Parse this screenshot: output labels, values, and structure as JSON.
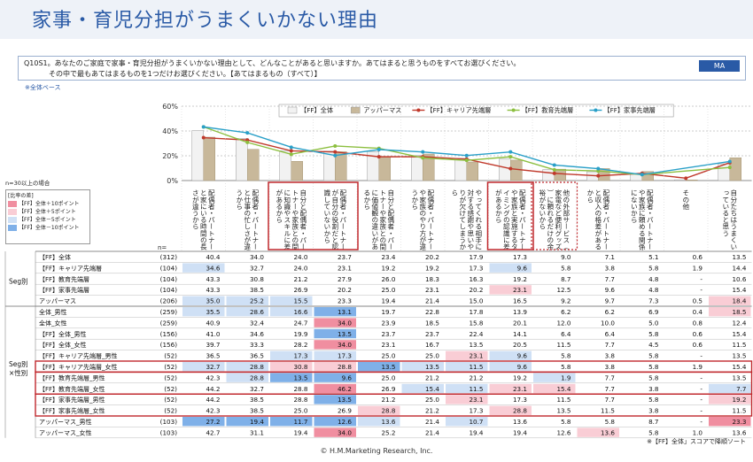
{
  "page": {
    "title": "家事・育児分担がうまくいかない理由",
    "question_line1": "Q10S1。あなたのご家庭で家事・育児分担がうまくいかない理由として、どんなことがあると思いますか。あてはまると思うものをすべてお選びください。",
    "question_line2": "その中で最もあてはまるものを1つだけお選びください。【あてはまるもの（すべて）】",
    "ma_label": "MA",
    "base_note": "※全体ベース",
    "n30_note": "n=30以上の場合",
    "legend_title": "[比率の差]",
    "legend_items": [
      "【FF】全体＋10ポイント",
      "【FF】全体＋5ポイント",
      "【FF】全体－5ポイント",
      "【FF】全体－10ポイント"
    ],
    "legend_colors": [
      "#f08ea0",
      "#f9cdd5",
      "#cfe0f5",
      "#7fb0e8"
    ],
    "n_label": "n=",
    "seg_label1": "Seg別",
    "seg_label2": "Seg別\n×性別",
    "footer": "© H.M.Marketing Research, Inc.",
    "sort_note": "※【FF】全体」スコアで降順ソート"
  },
  "chart_data": {
    "type": "bar",
    "ylim": [
      0,
      60
    ],
    "yticks": [
      "0%",
      "20%",
      "40%",
      "60%"
    ],
    "legend_position": "top-right",
    "categories": [
      "配偶者・パートナーと家にいる時間の長さが違うから",
      "配偶者・パートナーと仕事の忙しさが違うから",
      "自分と配偶者・パートナーや家族との間に知識やスキルに差があるから",
      "配偶者・パートナーが自分の役割だと認識していないから",
      "自分と配偶者・パートナーや家族との間に価値観の違いがあるから",
      "配偶者・パートナーや家族のやり方が違うから",
      "やってくれる相手に対する感謝や思いやりが欠けてしまうから",
      "配偶者・パートナーや家族と実施するタイミングの認識に差があるから",
      "他の外部サービス（家電など便利グッズ）に頼れるだけの余裕がないから",
      "配偶者・パートナーと収入の格差があるから",
      "配偶者・パートナーや家族に頼める関係にないから",
      "その他",
      "自分たちはうまくいっていると思う"
    ],
    "series": [
      {
        "name": "【FF】全体",
        "type": "bar",
        "color": "#f2f2f2",
        "values": [
          40.4,
          34.0,
          24.0,
          23.7,
          23.4,
          20.2,
          17.9,
          17.3,
          9.0,
          7.1,
          5.1,
          0.6,
          13.5
        ]
      },
      {
        "name": "アッパーマス",
        "type": "bar",
        "color": "#c8b89a",
        "values": [
          35.0,
          25.2,
          15.5,
          23.3,
          19.4,
          21.4,
          15.0,
          16.5,
          9.2,
          9.7,
          7.3,
          0.5,
          18.4
        ]
      },
      {
        "name": "【FF】キャリア先端層",
        "type": "line",
        "color": "#c0392b",
        "values": [
          34.6,
          32.7,
          24.0,
          23.1,
          19.2,
          19.2,
          17.3,
          9.6,
          5.8,
          3.8,
          5.8,
          1.9,
          14.4
        ]
      },
      {
        "name": "【FF】教育先端層",
        "type": "line",
        "color": "#8cbf3f",
        "values": [
          43.3,
          30.8,
          21.2,
          27.9,
          26.0,
          18.3,
          16.3,
          19.2,
          8.7,
          7.7,
          4.8,
          null,
          10.6
        ]
      },
      {
        "name": "【FF】家事先端層",
        "type": "line",
        "color": "#2aa0c8",
        "values": [
          43.3,
          38.5,
          26.9,
          20.2,
          25.0,
          23.1,
          20.2,
          23.1,
          12.5,
          9.6,
          4.8,
          null,
          15.4
        ]
      }
    ],
    "table": {
      "rows": [
        {
          "label": "【FF】全体",
          "n": "(312)",
          "values": [
            "40.4",
            "34.0",
            "24.0",
            "23.7",
            "23.4",
            "20.2",
            "17.9",
            "17.3",
            "9.0",
            "7.1",
            "5.1",
            "0.6",
            "13.5"
          ],
          "colors": [
            "",
            "",
            "",
            "",
            "",
            "",
            "",
            "",
            "",
            "",
            "",
            "",
            ""
          ]
        },
        {
          "label": "【FF】キャリア先端層",
          "n": "(104)",
          "values": [
            "34.6",
            "32.7",
            "24.0",
            "23.1",
            "19.2",
            "19.2",
            "17.3",
            "9.6",
            "5.8",
            "3.8",
            "5.8",
            "1.9",
            "14.4"
          ],
          "colors": [
            "b1",
            "",
            "",
            "",
            "",
            "",
            "",
            "b1",
            "",
            "",
            "",
            "",
            ""
          ]
        },
        {
          "label": "【FF】教育先端層",
          "n": "(104)",
          "values": [
            "43.3",
            "30.8",
            "21.2",
            "27.9",
            "26.0",
            "18.3",
            "16.3",
            "19.2",
            "8.7",
            "7.7",
            "4.8",
            "-",
            "10.6"
          ],
          "colors": [
            "",
            "",
            "",
            "",
            "",
            "",
            "",
            "",
            "",
            "",
            "",
            "",
            ""
          ]
        },
        {
          "label": "【FF】家事先端層",
          "n": "(104)",
          "values": [
            "43.3",
            "38.5",
            "26.9",
            "20.2",
            "25.0",
            "23.1",
            "20.2",
            "23.1",
            "12.5",
            "9.6",
            "4.8",
            "-",
            "15.4"
          ],
          "colors": [
            "",
            "",
            "",
            "",
            "",
            "",
            "",
            "r1",
            "",
            "",
            "",
            "",
            ""
          ]
        },
        {
          "label": "アッパーマス",
          "n": "(206)",
          "values": [
            "35.0",
            "25.2",
            "15.5",
            "23.3",
            "19.4",
            "21.4",
            "15.0",
            "16.5",
            "9.2",
            "9.7",
            "7.3",
            "0.5",
            "18.4"
          ],
          "colors": [
            "b1",
            "b1",
            "b1",
            "",
            "",
            "",
            "",
            "",
            "",
            "",
            "",
            "",
            "r1"
          ]
        },
        {
          "label": "全体_男性",
          "n": "(259)",
          "values": [
            "35.5",
            "28.6",
            "16.6",
            "13.1",
            "19.7",
            "22.8",
            "17.8",
            "13.9",
            "6.2",
            "6.2",
            "6.9",
            "0.4",
            "18.5"
          ],
          "colors": [
            "b1",
            "b1",
            "b1",
            "b2",
            "",
            "",
            "",
            "",
            "",
            "",
            "",
            "",
            "r1"
          ]
        },
        {
          "label": "全体_女性",
          "n": "(259)",
          "values": [
            "40.9",
            "32.4",
            "24.7",
            "34.0",
            "23.9",
            "18.5",
            "15.8",
            "20.1",
            "12.0",
            "10.0",
            "5.0",
            "0.8",
            "12.4"
          ],
          "colors": [
            "",
            "",
            "",
            "r2",
            "",
            "",
            "",
            "",
            "",
            "",
            "",
            "",
            ""
          ]
        },
        {
          "label": "【FF】全体_男性",
          "n": "(156)",
          "values": [
            "41.0",
            "34.6",
            "19.9",
            "13.5",
            "23.7",
            "23.7",
            "22.4",
            "14.1",
            "6.4",
            "6.4",
            "5.8",
            "0.6",
            "15.4"
          ],
          "colors": [
            "",
            "",
            "",
            "b2",
            "",
            "",
            "",
            "",
            "",
            "",
            "",
            "",
            ""
          ]
        },
        {
          "label": "【FF】全体_女性",
          "n": "(156)",
          "values": [
            "39.7",
            "33.3",
            "28.2",
            "34.0",
            "23.1",
            "16.7",
            "13.5",
            "20.5",
            "11.5",
            "7.7",
            "4.5",
            "0.6",
            "11.5"
          ],
          "colors": [
            "",
            "",
            "",
            "r2",
            "",
            "",
            "",
            "",
            "",
            "",
            "",
            "",
            ""
          ]
        },
        {
          "label": "【FF】キャリア先端層_男性",
          "n": "(52)",
          "values": [
            "36.5",
            "36.5",
            "17.3",
            "17.3",
            "25.0",
            "25.0",
            "23.1",
            "9.6",
            "5.8",
            "3.8",
            "5.8",
            "-",
            "13.5"
          ],
          "colors": [
            "",
            "",
            "b1",
            "b1",
            "",
            "",
            "r1",
            "b1",
            "",
            "",
            "",
            "",
            ""
          ]
        },
        {
          "label": "【FF】キャリア先端層_女性",
          "n": "(52)",
          "values": [
            "32.7",
            "28.8",
            "30.8",
            "28.8",
            "13.5",
            "13.5",
            "11.5",
            "9.6",
            "5.8",
            "3.8",
            "5.8",
            "1.9",
            "15.4"
          ],
          "colors": [
            "b1",
            "b1",
            "r1",
            "r1",
            "b2",
            "b1",
            "b1",
            "b1",
            "",
            "",
            "",
            "",
            ""
          ]
        },
        {
          "label": "【FF】教育先端層_男性",
          "n": "(52)",
          "values": [
            "42.3",
            "28.8",
            "13.5",
            "9.6",
            "25.0",
            "21.2",
            "21.2",
            "19.2",
            "1.9",
            "7.7",
            "5.8",
            "-",
            "13.5"
          ],
          "colors": [
            "",
            "b1",
            "b2",
            "b2",
            "",
            "",
            "",
            "",
            "b1",
            "",
            "",
            "",
            ""
          ]
        },
        {
          "label": "【FF】教育先端層_女性",
          "n": "(52)",
          "values": [
            "44.2",
            "32.7",
            "28.8",
            "46.2",
            "26.9",
            "15.4",
            "11.5",
            "23.1",
            "15.4",
            "7.7",
            "3.8",
            "-",
            "7.7"
          ],
          "colors": [
            "",
            "",
            "",
            "r2",
            "",
            "b1",
            "b1",
            "r1",
            "r1",
            "",
            "",
            "",
            "b1"
          ]
        },
        {
          "label": "【FF】家事先端層_男性",
          "n": "(52)",
          "values": [
            "44.2",
            "38.5",
            "28.8",
            "13.5",
            "21.2",
            "25.0",
            "23.1",
            "17.3",
            "11.5",
            "7.7",
            "5.8",
            "-",
            "19.2"
          ],
          "colors": [
            "",
            "",
            "",
            "b2",
            "",
            "",
            "r1",
            "",
            "",
            "",
            "",
            "",
            "r1"
          ]
        },
        {
          "label": "【FF】家事先端層_女性",
          "n": "(52)",
          "values": [
            "42.3",
            "38.5",
            "25.0",
            "26.9",
            "28.8",
            "21.2",
            "17.3",
            "28.8",
            "13.5",
            "11.5",
            "3.8",
            "-",
            "11.5"
          ],
          "colors": [
            "",
            "",
            "",
            "",
            "r1",
            "",
            "",
            "r1",
            "",
            "",
            "",
            "",
            ""
          ]
        },
        {
          "label": "アッパーマス_男性",
          "n": "(103)",
          "values": [
            "27.2",
            "19.4",
            "11.7",
            "12.6",
            "13.6",
            "21.4",
            "10.7",
            "13.6",
            "5.8",
            "5.8",
            "8.7",
            "-",
            "23.3"
          ],
          "colors": [
            "b2",
            "b2",
            "b2",
            "b2",
            "b1",
            "",
            "b1",
            "",
            "",
            "",
            "",
            "",
            "r2"
          ]
        },
        {
          "label": "アッパーマス_女性",
          "n": "(103)",
          "values": [
            "42.7",
            "31.1",
            "19.4",
            "34.0",
            "25.2",
            "21.4",
            "19.4",
            "19.4",
            "12.6",
            "13.6",
            "5.8",
            "1.0",
            "13.6"
          ],
          "colors": [
            "",
            "",
            "",
            "r2",
            "",
            "",
            "",
            "",
            "",
            "r1",
            "",
            "",
            ""
          ]
        }
      ]
    }
  }
}
